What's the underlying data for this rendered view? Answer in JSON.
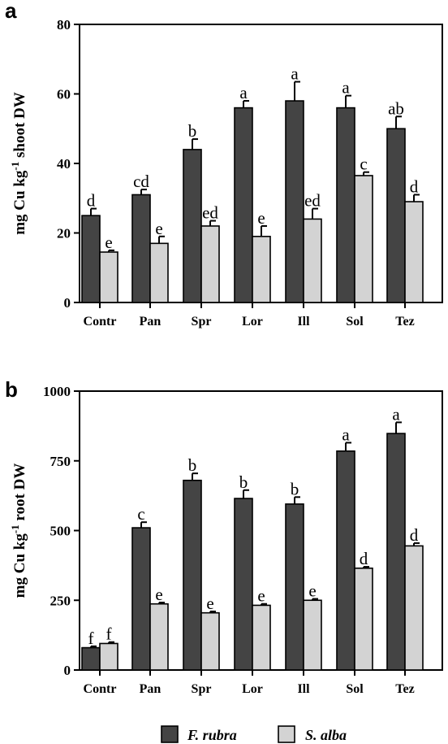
{
  "chart_data": [
    {
      "type": "bar",
      "panel": "a",
      "ylabel": "mg Cu kg-1 shoot DW",
      "ylabel_parts": [
        "mg Cu kg",
        "-1",
        " shoot DW"
      ],
      "ylim": [
        0,
        80
      ],
      "yticks": [
        0,
        20,
        40,
        60,
        80
      ],
      "categories": [
        "Contr",
        "Pan",
        "Spr",
        "Lor",
        "Ill",
        "Sol",
        "Tez"
      ],
      "series": [
        {
          "name": "F. rubra",
          "color": "#444444",
          "values": [
            25,
            31,
            44,
            56,
            58,
            56,
            50
          ],
          "errors": [
            2,
            1.5,
            3,
            2,
            5.5,
            3.5,
            3.5
          ],
          "letters": [
            "d",
            "cd",
            "b",
            "a",
            "a",
            "a",
            "ab"
          ]
        },
        {
          "name": "S. alba",
          "color": "#d3d3d3",
          "values": [
            14.5,
            17,
            22,
            19,
            24,
            36.5,
            29
          ],
          "errors": [
            0.5,
            2,
            1.5,
            3,
            3,
            1,
            2
          ],
          "letters": [
            "e",
            "e",
            "ed",
            "e",
            "ed",
            "c",
            "d"
          ]
        }
      ]
    },
    {
      "type": "bar",
      "panel": "b",
      "ylabel": "mg Cu kg-1 root DW",
      "ylabel_parts": [
        "mg Cu kg",
        "-1",
        " root DW"
      ],
      "ylim": [
        0,
        1000
      ],
      "yticks": [
        0,
        250,
        500,
        750,
        1000
      ],
      "categories": [
        "Contr",
        "Pan",
        "Spr",
        "Lor",
        "Ill",
        "Sol",
        "Tez"
      ],
      "series": [
        {
          "name": "F. rubra",
          "color": "#444444",
          "values": [
            80,
            510,
            680,
            615,
            595,
            785,
            848
          ],
          "errors": [
            5,
            20,
            25,
            30,
            25,
            30,
            40
          ],
          "letters": [
            "f",
            "c",
            "b",
            "b",
            "b",
            "a",
            "a"
          ]
        },
        {
          "name": "S. alba",
          "color": "#d3d3d3",
          "values": [
            95,
            237,
            205,
            232,
            250,
            365,
            445
          ],
          "errors": [
            5,
            5,
            5,
            5,
            5,
            5,
            10
          ],
          "letters": [
            "f",
            "e",
            "e",
            "e",
            "e",
            "d",
            "d"
          ]
        }
      ]
    }
  ],
  "legend": {
    "position": "bottom-center",
    "items": [
      {
        "label": "F. rubra",
        "color": "#444444"
      },
      {
        "label": "S. alba",
        "color": "#d3d3d3"
      }
    ]
  }
}
